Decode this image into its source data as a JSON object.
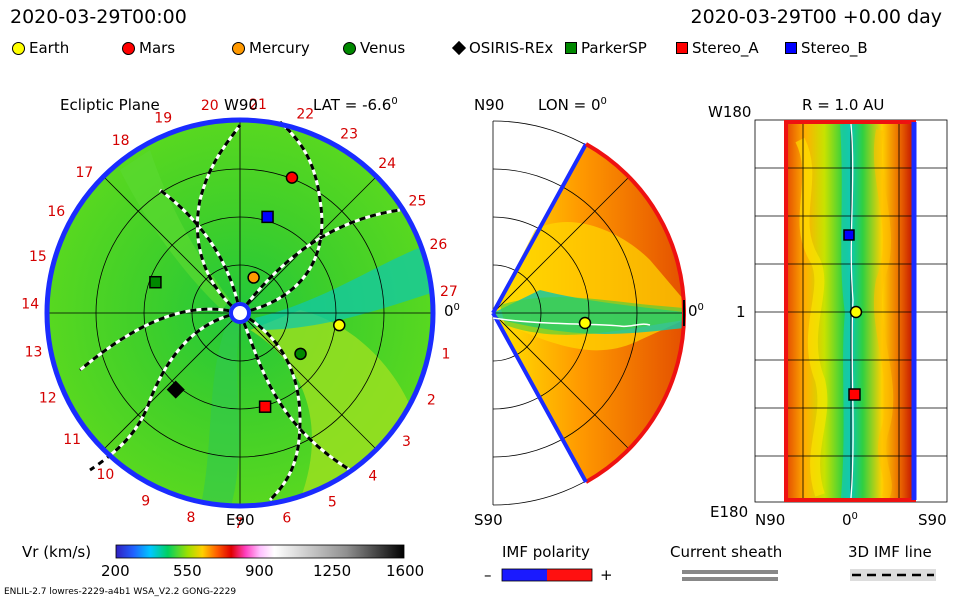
{
  "header": {
    "left_time": "2020-03-29T00:00",
    "right_time": "2020-03-29T00 +0.00 day"
  },
  "legend": [
    {
      "name": "Earth",
      "color": "#ffff00",
      "shape": "circle"
    },
    {
      "name": "Mars",
      "color": "#ff0000",
      "shape": "circle"
    },
    {
      "name": "Mercury",
      "color": "#ff9900",
      "shape": "circle"
    },
    {
      "name": "Venus",
      "color": "#008800",
      "shape": "circle"
    },
    {
      "name": "OSIRIS-REx",
      "color": "#000000",
      "shape": "diamond"
    },
    {
      "name": "ParkerSP",
      "color": "#008800",
      "shape": "square"
    },
    {
      "name": "Stereo_A",
      "color": "#ff0000",
      "shape": "square"
    },
    {
      "name": "Stereo_B",
      "color": "#0000ff",
      "shape": "square"
    }
  ],
  "panels": {
    "ecliptic": {
      "title": "Ecliptic Plane",
      "top_label": "W90",
      "bottom_label": "E90",
      "right_label": "0",
      "lat_label": "LAT = -6.6",
      "carrington_labels": [
        "1",
        "2",
        "3",
        "4",
        "5",
        "6",
        "7",
        "8",
        "9",
        "10",
        "11",
        "12",
        "13",
        "14",
        "15",
        "16",
        "17",
        "18",
        "19",
        "20",
        "21",
        "22",
        "23",
        "24",
        "25",
        "26",
        "27"
      ]
    },
    "meridional": {
      "top_label": "N90",
      "bottom_label": "S90",
      "right_label": "0",
      "lon_label": "LON = 0"
    },
    "map": {
      "title": "R = 1.0 AU",
      "top_left": "W180",
      "bottom_left": "E180",
      "left_mid": "1",
      "x_left": "N90",
      "x_mid": "0",
      "x_right": "S90"
    }
  },
  "chart_data": {
    "type": "heatmap",
    "colorbar": {
      "label": "Vr (km/s)",
      "ticks": [
        200,
        550,
        900,
        1250,
        1600
      ],
      "range": [
        200,
        1600
      ]
    },
    "objects": [
      {
        "name": "Earth",
        "ecliptic_r_au": 1.0,
        "ecliptic_lon_deg": -7
      },
      {
        "name": "Mars",
        "ecliptic_r_au": 1.45,
        "ecliptic_lon_deg": 69
      },
      {
        "name": "Mercury",
        "ecliptic_r_au": 0.38,
        "ecliptic_lon_deg": 69
      },
      {
        "name": "Venus",
        "ecliptic_r_au": 0.73,
        "ecliptic_lon_deg": -34
      },
      {
        "name": "OSIRIS-REx",
        "ecliptic_r_au": 1.0,
        "ecliptic_lon_deg": -130
      },
      {
        "name": "ParkerSP",
        "ecliptic_r_au": 0.9,
        "ecliptic_lon_deg": 160
      },
      {
        "name": "Stereo_A",
        "ecliptic_r_au": 0.97,
        "ecliptic_lon_deg": -75
      },
      {
        "name": "Stereo_B",
        "ecliptic_r_au": 1.0,
        "ecliptic_lon_deg": 74
      }
    ]
  },
  "footer_legends": {
    "imf_polarity": "IMF polarity",
    "minus": "–",
    "plus": "+",
    "current_sheath": "Current sheath",
    "imf_line": "3D IMF line",
    "info_left": "ENLIL-2.7 lowres-2229-a4b1 WSA_V2.2 GONG-2229"
  }
}
